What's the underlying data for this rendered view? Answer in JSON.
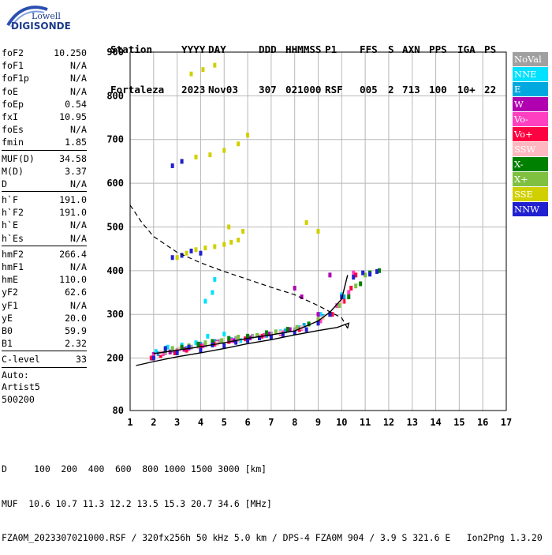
{
  "logo": {
    "line1": "Lowell",
    "line2": "DIGISONDE"
  },
  "header": {
    "row1": [
      "Station",
      "YYYY",
      "DAY",
      "DDD",
      "HHMMSS",
      "P1",
      "FFS",
      "S",
      "AXN",
      "PPS",
      "IGA",
      "PS"
    ],
    "row2": [
      "Fortaleza",
      "2023",
      "Nov03",
      "307",
      "021000",
      "RSF",
      "005",
      "2",
      "713",
      "100",
      "10+",
      "22"
    ]
  },
  "params": {
    "group1": [
      {
        "name": "foF2",
        "value": "10.250"
      },
      {
        "name": "foF1",
        "value": "N/A"
      },
      {
        "name": "foF1p",
        "value": "N/A"
      },
      {
        "name": "foE",
        "value": "N/A"
      },
      {
        "name": "foEp",
        "value": "0.54"
      },
      {
        "name": "fxI",
        "value": "10.95"
      },
      {
        "name": "foEs",
        "value": "N/A"
      },
      {
        "name": "fmin",
        "value": "1.85"
      }
    ],
    "group2": [
      {
        "name": "MUF(D)",
        "value": "34.58"
      },
      {
        "name": "M(D)",
        "value": "3.37"
      },
      {
        "name": "D",
        "value": "N/A"
      }
    ],
    "group3": [
      {
        "name": "h`F",
        "value": "191.0"
      },
      {
        "name": "h`F2",
        "value": "191.0"
      },
      {
        "name": "h`E",
        "value": "N/A"
      },
      {
        "name": "h`Es",
        "value": "N/A"
      }
    ],
    "group4": [
      {
        "name": "hmF2",
        "value": "266.4"
      },
      {
        "name": "hmF1",
        "value": "N/A"
      },
      {
        "name": "hmE",
        "value": "110.0"
      },
      {
        "name": "yF2",
        "value": "62.6"
      },
      {
        "name": "yF1",
        "value": "N/A"
      },
      {
        "name": "yE",
        "value": "20.0"
      },
      {
        "name": "B0",
        "value": "59.9"
      },
      {
        "name": "B1",
        "value": "2.32"
      }
    ],
    "group5": [
      {
        "name": "C-level",
        "value": "33"
      }
    ],
    "auto": [
      "Auto:",
      "Artist5",
      "500200"
    ]
  },
  "legend": [
    {
      "label": "NoVal",
      "color": "#a0a0a0"
    },
    {
      "label": "NNE",
      "color": "#00e0ff"
    },
    {
      "label": "E",
      "color": "#00a8e0"
    },
    {
      "label": "W",
      "color": "#b000b0"
    },
    {
      "label": "Vo-",
      "color": "#ff40c0"
    },
    {
      "label": "Vo+",
      "color": "#ff0040"
    },
    {
      "label": "SSW",
      "color": "#ffb8c0"
    },
    {
      "label": "X-",
      "color": "#008000"
    },
    {
      "label": "X+",
      "color": "#80c040"
    },
    {
      "label": "SSE",
      "color": "#d0d000"
    },
    {
      "label": "NNW",
      "color": "#2020d0"
    }
  ],
  "footer": {
    "line1": "D     100  200  400  600  800 1000 1500 3000 [km]",
    "line2": "MUF  10.6 10.7 11.3 12.2 13.5 15.3 20.7 34.6 [MHz]",
    "line3": "FZA0M_2023307021000.RSF / 320fx256h 50 kHz 5.0 km / DPS-4 FZA0M 904 / 3.9 S 321.6 E   Ion2Png 1.3.20"
  },
  "chart_data": {
    "type": "scatter",
    "xlim": [
      1,
      17
    ],
    "ylim": [
      80,
      900
    ],
    "x_ticks": [
      1,
      2,
      3,
      4,
      5,
      6,
      7,
      8,
      9,
      10,
      11,
      12,
      13,
      14,
      15,
      16,
      17
    ],
    "y_ticks": [
      80,
      200,
      300,
      400,
      500,
      600,
      700,
      800,
      900
    ],
    "grid": true,
    "legend_position": "right",
    "series": [
      {
        "color_key": "NoVal",
        "x": [
          2.0,
          2.5,
          3.0,
          3.6,
          4.2,
          4.8,
          5.5,
          6.2,
          7.0,
          8.0,
          9.0,
          9.8
        ],
        "y": [
          205,
          212,
          218,
          225,
          230,
          238,
          245,
          250,
          255,
          265,
          285,
          320
        ]
      },
      {
        "color_key": "NNE",
        "x": [
          2.1,
          2.6,
          3.2,
          3.8,
          4.3,
          4.5,
          4.2,
          4.6,
          5.0,
          5.7,
          6.5,
          7.4,
          8.2,
          9.1,
          10.0
        ],
        "y": [
          215,
          225,
          230,
          235,
          250,
          350,
          330,
          380,
          255,
          240,
          250,
          260,
          270,
          300,
          345
        ]
      },
      {
        "color_key": "E",
        "x": [
          2.2,
          2.8,
          3.4,
          4.0,
          4.6,
          5.3,
          6.0,
          6.8,
          7.6,
          8.4,
          9.2,
          10.1
        ],
        "y": [
          210,
          218,
          222,
          232,
          238,
          242,
          248,
          252,
          262,
          275,
          295,
          340
        ]
      },
      {
        "color_key": "W",
        "x": [
          2.0,
          2.7,
          3.3,
          4.0,
          4.7,
          5.4,
          6.1,
          6.9,
          7.8,
          8.0,
          8.3,
          9.0,
          9.5
        ],
        "y": [
          208,
          214,
          220,
          228,
          236,
          240,
          246,
          255,
          265,
          360,
          340,
          300,
          390
        ]
      },
      {
        "color_key": "Vo-",
        "x": [
          2.0,
          2.4,
          3.0,
          3.5,
          4.1,
          4.7,
          5.3,
          6.0,
          6.7,
          7.5,
          8.3,
          9.1,
          9.8,
          10.3,
          10.5
        ],
        "y": [
          205,
          210,
          215,
          222,
          228,
          234,
          240,
          246,
          252,
          258,
          268,
          285,
          320,
          350,
          395
        ]
      },
      {
        "color_key": "Vo+",
        "x": [
          1.9,
          2.3,
          2.9,
          3.4,
          4.0,
          4.6,
          5.2,
          5.9,
          6.6,
          7.4,
          8.2,
          9.0,
          9.6,
          10.1,
          10.4,
          10.6
        ],
        "y": [
          200,
          206,
          212,
          218,
          225,
          232,
          238,
          244,
          250,
          256,
          265,
          280,
          300,
          330,
          360,
          390
        ]
      },
      {
        "color_key": "SSW",
        "x": [
          2.3,
          3.1,
          3.9,
          4.7,
          5.6,
          6.5,
          7.4,
          8.3,
          9.2,
          10.0
        ],
        "y": [
          212,
          220,
          226,
          234,
          242,
          250,
          258,
          270,
          292,
          330
        ]
      },
      {
        "color_key": "X-",
        "x": [
          2.5,
          3.2,
          3.9,
          4.5,
          5.2,
          6.0,
          6.8,
          7.7,
          8.6,
          9.5,
          10.3,
          10.8,
          11.2,
          11.6
        ],
        "y": [
          218,
          225,
          232,
          238,
          245,
          250,
          258,
          266,
          278,
          300,
          340,
          370,
          395,
          400
        ]
      },
      {
        "color_key": "X+",
        "x": [
          2.8,
          3.5,
          4.2,
          4.9,
          5.6,
          6.4,
          7.2,
          8.1,
          9.0,
          9.9,
          10.6,
          11.0
        ],
        "y": [
          222,
          228,
          235,
          240,
          248,
          252,
          260,
          270,
          288,
          320,
          365,
          390
        ]
      },
      {
        "color_key": "SSE",
        "x": [
          3.0,
          3.4,
          3.8,
          4.2,
          4.6,
          5.0,
          5.3,
          5.6,
          3.2,
          3.8,
          4.4,
          5.0,
          5.6,
          6.0,
          3.6,
          4.1,
          4.6,
          5.2,
          5.8,
          8.5,
          9.0
        ],
        "y": [
          430,
          440,
          448,
          452,
          455,
          460,
          465,
          470,
          650,
          660,
          665,
          675,
          690,
          710,
          850,
          860,
          870,
          500,
          490,
          510,
          490
        ]
      },
      {
        "color_key": "NNW",
        "x": [
          2.0,
          2.5,
          3.0,
          3.5,
          4.0,
          4.5,
          5.0,
          5.5,
          6.0,
          6.5,
          7.0,
          7.5,
          8.0,
          8.5,
          9.0,
          9.5,
          10.0,
          10.5,
          10.9,
          11.2,
          11.5,
          2.8,
          3.2,
          3.6,
          4.0,
          2.8,
          3.2
        ],
        "y": [
          200,
          222,
          212,
          225,
          218,
          230,
          228,
          236,
          240,
          246,
          248,
          254,
          258,
          265,
          280,
          300,
          340,
          385,
          395,
          392,
          398,
          430,
          435,
          445,
          440,
          640,
          650
        ]
      }
    ],
    "f2_virtual_height_trace": {
      "x": [
        2.0,
        3.0,
        4.0,
        5.0,
        6.0,
        7.0,
        8.0,
        9.0,
        9.5,
        10.0,
        10.25
      ],
      "y": [
        210,
        218,
        226,
        235,
        245,
        253,
        262,
        285,
        305,
        335,
        390
      ]
    },
    "profile_solid": {
      "x": [
        1.25,
        2,
        3,
        4,
        5,
        6,
        7,
        8,
        9,
        9.8,
        10.3,
        10.25
      ],
      "y": [
        183,
        192,
        203,
        212,
        222,
        233,
        242,
        253,
        263,
        270,
        280,
        268
      ]
    },
    "profile_dashed": {
      "x": [
        1,
        1.5,
        2,
        3,
        4,
        5,
        6,
        7,
        8,
        9,
        10,
        10.25
      ],
      "y": [
        550,
        510,
        478,
        442,
        418,
        398,
        380,
        362,
        345,
        320,
        292,
        268
      ]
    }
  }
}
